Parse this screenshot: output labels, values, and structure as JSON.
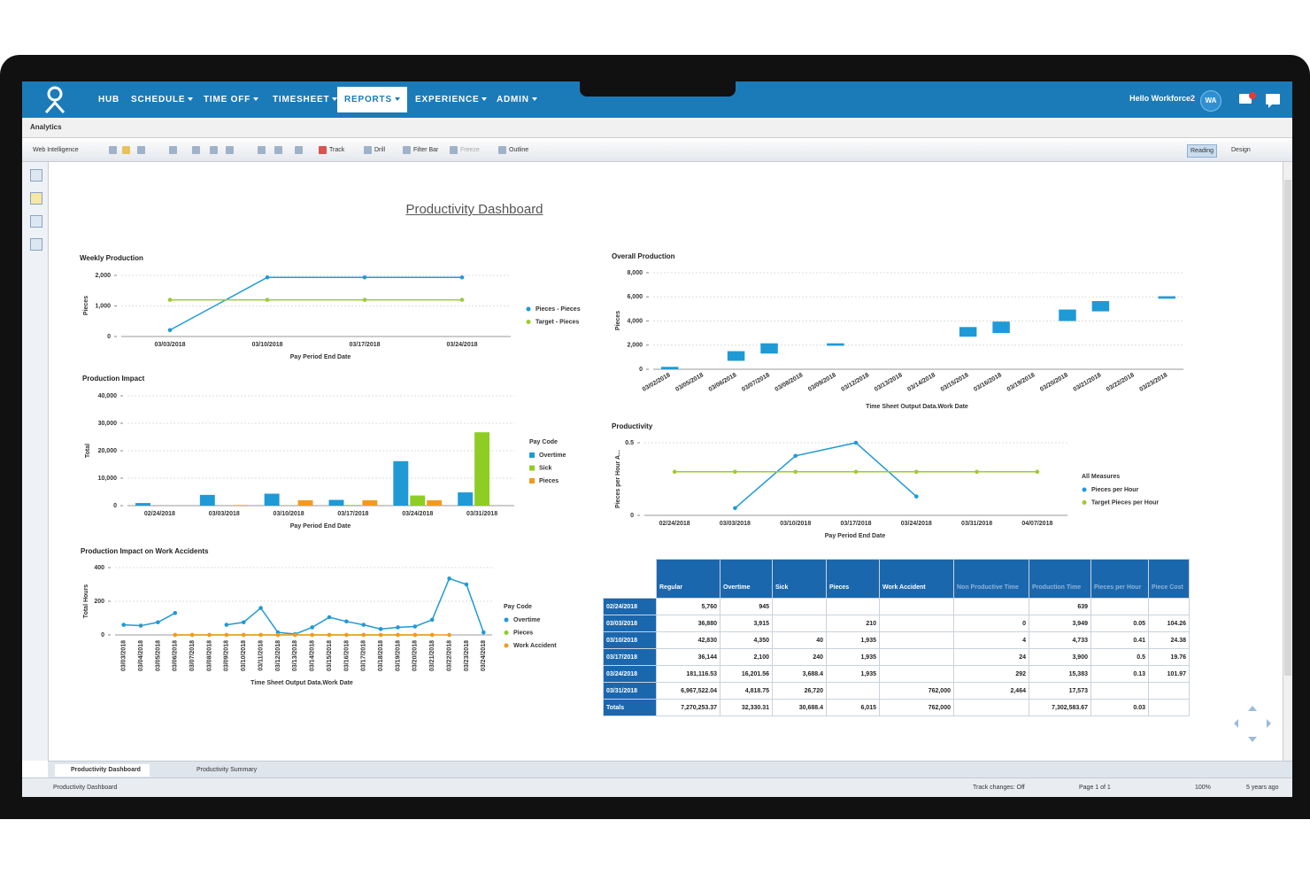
{
  "nav": {
    "items": [
      "HUB",
      "SCHEDULE",
      "TIME OFF",
      "TIMESHEET",
      "REPORTS",
      "EXPERIENCE",
      "ADMIN"
    ],
    "greeting": "Hello Workforce2",
    "avatar": "WA"
  },
  "breadcrumb": "Analytics",
  "toolbar": {
    "app": "Web Intelligence",
    "buttons": [
      "Track",
      "Drill",
      "Filter Bar",
      "Freeze",
      "Outline"
    ],
    "modes": [
      "Reading",
      "Design"
    ]
  },
  "dashboard_title": "Productivity Dashboard",
  "chart_data": [
    {
      "type": "line",
      "title": "Weekly Production",
      "x_label": "Pay Period End Date",
      "y_label": "Pieces",
      "categories": [
        "03/03/2018",
        "03/10/2018",
        "03/17/2018",
        "03/24/2018"
      ],
      "series": [
        {
          "name": "Pieces - Pieces",
          "color": "#1f9ad6",
          "values": [
            210,
            1935,
            1935,
            1935
          ]
        },
        {
          "name": "Target - Pieces",
          "color": "#9ccd2a",
          "values": [
            1200,
            1200,
            1200,
            1200
          ]
        }
      ],
      "ylim": [
        0,
        2000
      ],
      "yticks": [
        0,
        {
          "value": 1000,
          "label": "1,000"
        },
        {
          "value": 2000,
          "label": "2,000"
        }
      ],
      "grid": true
    },
    {
      "type": "bar",
      "title": "Production Impact",
      "x_label": "Pay Period End Date",
      "y_label": "Total",
      "legend_title": "Pay Code",
      "categories": [
        "02/24/2018",
        "03/03/2018",
        "03/10/2018",
        "03/17/2018",
        "03/24/2018",
        "03/31/2018"
      ],
      "series": [
        {
          "name": "Overtime",
          "color": "#1f9ad6",
          "values": [
            945,
            3915,
            4350,
            2100,
            16201.56,
            4818.75
          ]
        },
        {
          "name": "Sick",
          "color": "#8fcd24",
          "values": [
            null,
            null,
            40,
            240,
            3688.4,
            26720
          ]
        },
        {
          "name": "Pieces",
          "color": "#f39a1e",
          "values": [
            null,
            210,
            1935,
            1935,
            1935,
            null
          ]
        }
      ],
      "ylim": [
        0,
        40000
      ],
      "yticks": [
        0,
        {
          "value": 10000,
          "label": "10,000"
        },
        {
          "value": 20000,
          "label": "20,000"
        },
        {
          "value": 30000,
          "label": "30,000"
        },
        {
          "value": 40000,
          "label": "40,000"
        }
      ],
      "grid": true
    },
    {
      "type": "line",
      "title": "Production Impact on Work Accidents",
      "x_label": "Time Sheet Output Data.Work Date",
      "y_label": "Total Hours",
      "legend_title": "Pay Code",
      "categories": [
        "03/03/2018",
        "03/04/2018",
        "03/05/2018",
        "03/06/2018",
        "03/07/2018",
        "03/08/2018",
        "03/09/2018",
        "03/10/2018",
        "03/11/2018",
        "03/12/2018",
        "03/13/2018",
        "03/14/2018",
        "03/15/2018",
        "03/16/2018",
        "03/17/2018",
        "03/18/2018",
        "03/19/2018",
        "03/20/2018",
        "03/21/2018",
        "03/22/2018",
        "03/23/2018",
        "03/24/2018"
      ],
      "series": [
        {
          "name": "Overtime",
          "color": "#1f9ad6",
          "values": [
            60,
            55,
            75,
            130,
            null,
            null,
            60,
            75,
            160,
            15,
            5,
            45,
            105,
            80,
            60,
            35,
            45,
            50,
            90,
            335,
            300,
            15
          ]
        },
        {
          "name": "Pieces",
          "color": "#8fcd24",
          "values": [
            null,
            null,
            null,
            0,
            0,
            0,
            0,
            0,
            0,
            0,
            0,
            0,
            0,
            0,
            0,
            0,
            0,
            0,
            0,
            null,
            null,
            null
          ]
        },
        {
          "name": "Work Accident",
          "color": "#f39a1e",
          "values": [
            null,
            null,
            null,
            0,
            0,
            0,
            0,
            0,
            0,
            0,
            0,
            0,
            0,
            0,
            0,
            0,
            0,
            0,
            0,
            0,
            null,
            null
          ]
        }
      ],
      "ylim": [
        0,
        400
      ],
      "yticks": [
        0,
        200,
        400
      ],
      "grid": true
    },
    {
      "type": "floating-bar",
      "title": "Overall Production",
      "x_label": "Time Sheet Output Data.Work Date",
      "y_label": "Pieces",
      "color": "#1f9ad6",
      "categories": [
        "03/02/2018",
        "03/05/2018",
        "03/06/2018",
        "03/07/2018",
        "03/08/2018",
        "03/09/2018",
        "03/12/2018",
        "03/13/2018",
        "03/14/2018",
        "03/15/2018",
        "03/16/2018",
        "03/19/2018",
        "03/20/2018",
        "03/21/2018",
        "03/22/2018",
        "03/23/2018"
      ],
      "low": [
        0,
        null,
        700,
        1300,
        null,
        1950,
        null,
        null,
        null,
        2700,
        3000,
        null,
        4000,
        4800,
        null,
        5850
      ],
      "high": [
        200,
        null,
        1500,
        2150,
        null,
        2150,
        null,
        null,
        null,
        3500,
        3950,
        null,
        4950,
        5650,
        null,
        6050
      ],
      "ylim": [
        0,
        8000
      ],
      "yticks": [
        0,
        {
          "value": 2000,
          "label": "2,000"
        },
        {
          "value": 4000,
          "label": "4,000"
        },
        {
          "value": 6000,
          "label": "6,000"
        },
        {
          "value": 8000,
          "label": "8,000"
        }
      ],
      "grid": true
    },
    {
      "type": "line",
      "title": "Productivity",
      "x_label": "Pay Period End Date",
      "y_label": "Pieces per Hour A...",
      "legend_title": "All Measures",
      "categories": [
        "02/24/2018",
        "03/03/2018",
        "03/10/2018",
        "03/17/2018",
        "03/24/2018",
        "03/31/2018",
        "04/07/2018"
      ],
      "series": [
        {
          "name": "Pieces per Hour",
          "color": "#1f9ad6",
          "values": [
            null,
            0.05,
            0.41,
            0.5,
            0.13,
            null,
            null
          ]
        },
        {
          "name": "Target Pieces per Hour",
          "color": "#9ccd2a",
          "values": [
            0.3,
            0.3,
            0.3,
            0.3,
            0.3,
            0.3,
            0.3
          ]
        }
      ],
      "ylim": [
        0,
        0.5
      ],
      "yticks": [
        0,
        0.5
      ],
      "grid": true
    }
  ],
  "table": {
    "header": [
      "Regular",
      "Overtime",
      "Sick",
      "Pieces",
      "Work Accident",
      "Non Productive Time",
      "Production Time",
      "Pieces per Hour",
      "Piece Cost"
    ],
    "rows": [
      [
        "02/24/2018",
        "5,760",
        "945",
        null,
        null,
        null,
        null,
        "639",
        null,
        null
      ],
      [
        "03/03/2018",
        "36,880",
        "3,915",
        null,
        "210",
        null,
        "0",
        "3,949",
        "0.05",
        "104.26"
      ],
      [
        "03/10/2018",
        "42,830",
        "4,350",
        "40",
        "1,935",
        null,
        "4",
        "4,733",
        "0.41",
        "24.38"
      ],
      [
        "03/17/2018",
        "36,144",
        "2,100",
        "240",
        "1,935",
        null,
        "24",
        "3,900",
        "0.5",
        "19.76"
      ],
      [
        "03/24/2018",
        "181,116.53",
        "16,201.56",
        "3,688.4",
        "1,935",
        null,
        "292",
        "15,383",
        "0.13",
        "101.97"
      ],
      [
        "03/31/2018",
        "6,967,522.04",
        "4,818.75",
        "26,720",
        null,
        "762,000",
        "2,464",
        "17,573",
        null,
        null
      ],
      [
        "Totals",
        "7,270,253.37",
        "32,330.31",
        "30,688.4",
        "6,015",
        "762,000",
        null,
        "7,302,583.67",
        "0.03",
        null
      ]
    ]
  },
  "tabs": [
    "Productivity Dashboard",
    "Productivity Summary"
  ],
  "status": {
    "document": "Productivity Dashboard",
    "track": "Track changes: Off",
    "page": "Page 1 of 1",
    "zoom": "100%",
    "saved": "5 years ago"
  }
}
